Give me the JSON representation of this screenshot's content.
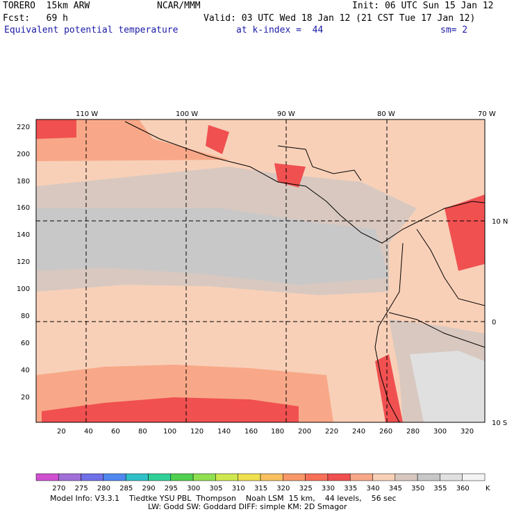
{
  "header": {
    "model": "TORERO  15km ARW",
    "org": "NCAR/MMM",
    "init": "Init: 06 UTC Sun 15 Jan 12",
    "fcst": "Fcst:   69 h",
    "valid": "Valid: 03 UTC Wed 18 Jan 12 (21 CST Tue 17 Jan 12)",
    "field": "Equivalent potential temperature",
    "level": "at k-index =  44",
    "smoothing": "sm= 2",
    "accent_color": "#1a1aa6"
  },
  "map": {
    "top_lon_labels": [
      "110 W",
      "100 W",
      "90 W",
      "80 W",
      "70 W"
    ],
    "right_lat_labels": [
      "10 N",
      "0",
      "10 S"
    ],
    "left_grid_labels": [
      "220",
      "200",
      "180",
      "160",
      "140",
      "120",
      "100",
      "80",
      "60",
      "40",
      "20"
    ],
    "bottom_grid_labels": [
      "20",
      "40",
      "60",
      "80",
      "100",
      "120",
      "140",
      "160",
      "180",
      "200",
      "220",
      "240",
      "260",
      "280",
      "300",
      "320"
    ]
  },
  "legend": {
    "unit": "K",
    "levels": [
      "270",
      "275",
      "280",
      "285",
      "290",
      "295",
      "300",
      "305",
      "310",
      "315",
      "320",
      "325",
      "330",
      "335",
      "340",
      "345",
      "350",
      "355",
      "360"
    ],
    "colors": [
      "#d050d0",
      "#a070d8",
      "#7070e8",
      "#5088f0",
      "#30c0c8",
      "#30d098",
      "#50d050",
      "#90e050",
      "#d0e850",
      "#f0e050",
      "#f8c060",
      "#f89868",
      "#f87058",
      "#f05050",
      "#f8a888",
      "#f8d0b8",
      "#d8c8c0",
      "#c8c8c8",
      "#e0e0e0",
      "#f4f4f4"
    ]
  },
  "footer": {
    "line1": "Model Info: V3.3.1    Tiedtke YSU PBL  Thompson    Noah LSM  15 km,    44 levels,    56 sec",
    "line2": "LW: Godd SW: Goddard DIFF: simple KM: 2D Smagor"
  }
}
